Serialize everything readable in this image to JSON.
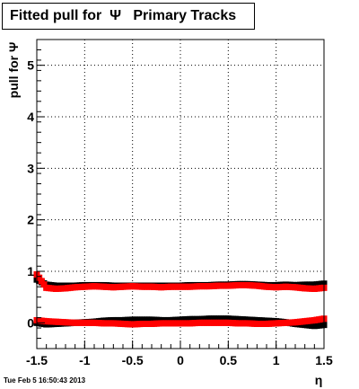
{
  "title": "Fitted pull for  Ψ   Primary Tracks",
  "timestamp": "Tue Feb  5 16:50:43 2013",
  "chart_data": {
    "type": "scatter",
    "xlabel": "η",
    "ylabel": "pull for Ψ",
    "xlim": [
      -1.5,
      1.5
    ],
    "ylim": [
      -0.5,
      5.5
    ],
    "x_ticks": [
      "-1.5",
      "-1",
      "-0.5",
      "0",
      "0.5",
      "1",
      "1.5"
    ],
    "y_ticks": [
      "0",
      "1",
      "2",
      "3",
      "4",
      "5"
    ],
    "grid": true,
    "colors": {
      "sigma": "#ff0000",
      "mean": "#ff0000",
      "background_markers": "#000000"
    },
    "series": [
      {
        "color": "#000000",
        "x": [
          -1.5,
          -1.4,
          -1.3,
          -1.2,
          -1.1,
          -1.0,
          -0.9,
          -0.8,
          -0.7,
          -0.6,
          -0.5,
          -0.4,
          -0.3,
          -0.2,
          -0.1,
          0.0,
          0.1,
          0.2,
          0.3,
          0.4,
          0.5,
          0.6,
          0.7,
          0.8,
          0.9,
          1.0,
          1.1,
          1.2,
          1.3,
          1.4,
          1.5
        ],
        "y": [
          0.84,
          0.74,
          0.72,
          0.72,
          0.72,
          0.73,
          0.73,
          0.73,
          0.72,
          0.72,
          0.72,
          0.72,
          0.72,
          0.72,
          0.72,
          0.72,
          0.73,
          0.73,
          0.73,
          0.74,
          0.74,
          0.75,
          0.75,
          0.74,
          0.73,
          0.73,
          0.74,
          0.73,
          0.74,
          0.74,
          0.76
        ]
      },
      {
        "color": "#ff0000",
        "x": [
          -1.5,
          -1.4,
          -1.3,
          -1.2,
          -1.1,
          -1.0,
          -0.9,
          -0.8,
          -0.7,
          -0.6,
          -0.5,
          -0.4,
          -0.3,
          -0.2,
          -0.1,
          0.0,
          0.1,
          0.2,
          0.3,
          0.4,
          0.5,
          0.6,
          0.7,
          0.8,
          0.9,
          1.0,
          1.1,
          1.2,
          1.3,
          1.4,
          1.5
        ],
        "y": [
          0.94,
          0.68,
          0.66,
          0.67,
          0.69,
          0.7,
          0.71,
          0.7,
          0.69,
          0.7,
          0.71,
          0.7,
          0.7,
          0.69,
          0.7,
          0.7,
          0.7,
          0.71,
          0.71,
          0.72,
          0.72,
          0.73,
          0.73,
          0.72,
          0.7,
          0.69,
          0.7,
          0.69,
          0.67,
          0.66,
          0.68
        ]
      },
      {
        "color": "#000000",
        "x": [
          -1.5,
          -1.4,
          -1.3,
          -1.2,
          -1.1,
          -1.0,
          -0.9,
          -0.8,
          -0.7,
          -0.6,
          -0.5,
          -0.4,
          -0.3,
          -0.2,
          -0.1,
          0.0,
          0.1,
          0.2,
          0.3,
          0.4,
          0.5,
          0.6,
          0.7,
          0.8,
          0.9,
          1.0,
          1.1,
          1.2,
          1.3,
          1.4,
          1.5
        ],
        "y": [
          0.0,
          -0.03,
          -0.02,
          -0.01,
          0.0,
          0.01,
          0.02,
          0.04,
          0.05,
          0.05,
          0.06,
          0.06,
          0.06,
          0.05,
          0.05,
          0.06,
          0.07,
          0.07,
          0.08,
          0.08,
          0.08,
          0.07,
          0.06,
          0.05,
          0.04,
          0.03,
          0.01,
          -0.02,
          -0.04,
          -0.06,
          -0.04
        ]
      },
      {
        "color": "#ff0000",
        "x": [
          -1.5,
          -1.4,
          -1.3,
          -1.2,
          -1.1,
          -1.0,
          -0.9,
          -0.8,
          -0.7,
          -0.6,
          -0.5,
          -0.4,
          -0.3,
          -0.2,
          -0.1,
          0.0,
          0.1,
          0.2,
          0.3,
          0.4,
          0.5,
          0.6,
          0.7,
          0.8,
          0.9,
          1.0,
          1.1,
          1.2,
          1.3,
          1.4,
          1.5
        ],
        "y": [
          0.05,
          0.03,
          0.02,
          0.01,
          0.0,
          0.0,
          0.0,
          -0.01,
          -0.01,
          -0.02,
          -0.03,
          -0.02,
          -0.02,
          -0.01,
          -0.01,
          -0.01,
          -0.01,
          0.0,
          0.0,
          0.0,
          0.0,
          -0.01,
          -0.01,
          -0.02,
          -0.02,
          -0.01,
          0.0,
          0.01,
          0.03,
          0.05,
          0.08
        ]
      }
    ]
  }
}
